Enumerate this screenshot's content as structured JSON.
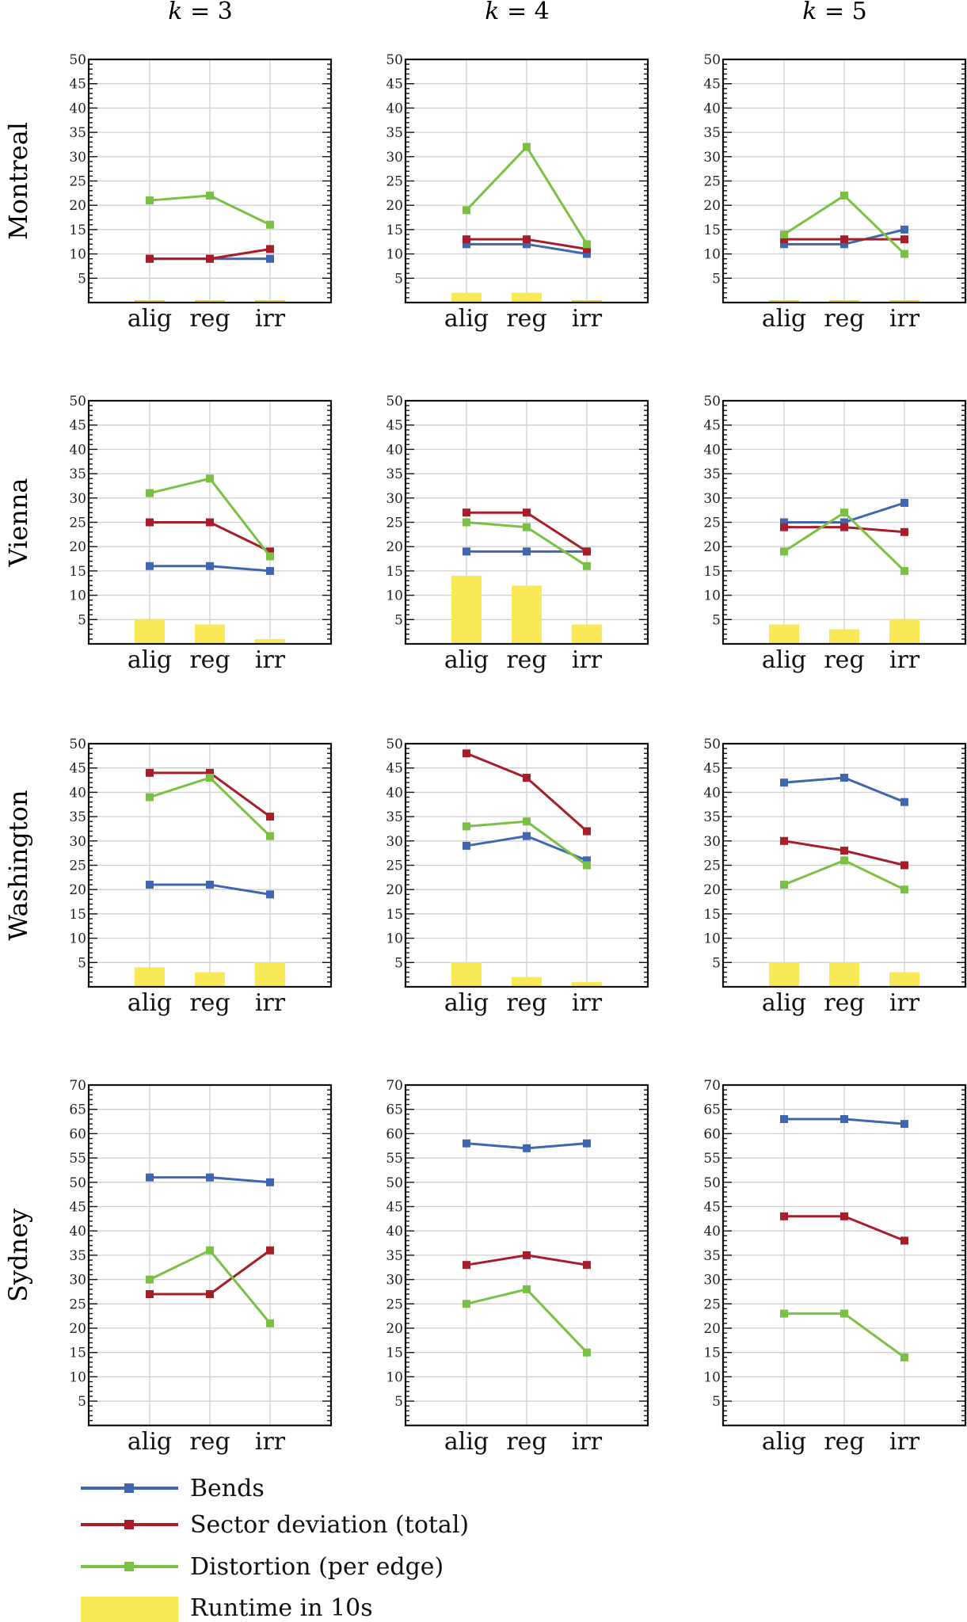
{
  "chart_data": {
    "type": "line",
    "grid": true,
    "column_titles": [
      {
        "var": "k",
        "op": "=",
        "val": "3"
      },
      {
        "var": "k",
        "op": "=",
        "val": "4"
      },
      {
        "var": "k",
        "op": "=",
        "val": "5"
      }
    ],
    "row_labels": [
      "Montreal",
      "Vienna",
      "Washington",
      "Sydney"
    ],
    "categories": [
      "alig",
      "reg",
      "irr"
    ],
    "series_defs": [
      {
        "key": "bends",
        "name": "Bends",
        "color": "#4066b0",
        "kind": "line"
      },
      {
        "key": "sector",
        "name": "Sector deviation (total)",
        "color": "#a81d2a",
        "kind": "line"
      },
      {
        "key": "distortion",
        "name": "Distortion (per edge)",
        "color": "#7ac143",
        "kind": "line"
      },
      {
        "key": "runtime",
        "name": "Runtime in 10s",
        "color": "#f9e858",
        "kind": "bar"
      }
    ],
    "legend_position": "bottom-left",
    "rows": [
      {
        "name": "Montreal",
        "ylim": [
          0,
          50
        ],
        "yticks": [
          5,
          10,
          15,
          20,
          25,
          30,
          35,
          40,
          45,
          50
        ],
        "panels": [
          {
            "k": 3,
            "bends": [
              9,
              9,
              9
            ],
            "sector": [
              9,
              9,
              11
            ],
            "distortion": [
              21,
              22,
              16
            ],
            "runtime": [
              0,
              0,
              0
            ]
          },
          {
            "k": 4,
            "bends": [
              12,
              12,
              10
            ],
            "sector": [
              13,
              13,
              11
            ],
            "distortion": [
              19,
              32,
              12
            ],
            "runtime": [
              2,
              2,
              0
            ]
          },
          {
            "k": 5,
            "bends": [
              12,
              12,
              15
            ],
            "sector": [
              13,
              13,
              13
            ],
            "distortion": [
              14,
              22,
              10
            ],
            "runtime": [
              0,
              0,
              0
            ]
          }
        ]
      },
      {
        "name": "Vienna",
        "ylim": [
          0,
          50
        ],
        "yticks": [
          5,
          10,
          15,
          20,
          25,
          30,
          35,
          40,
          45,
          50
        ],
        "panels": [
          {
            "k": 3,
            "bends": [
              16,
              16,
              15
            ],
            "sector": [
              25,
              25,
              19
            ],
            "distortion": [
              31,
              34,
              18
            ],
            "runtime": [
              5,
              4,
              1
            ]
          },
          {
            "k": 4,
            "bends": [
              19,
              19,
              19
            ],
            "sector": [
              27,
              27,
              19
            ],
            "distortion": [
              25,
              24,
              16
            ],
            "runtime": [
              14,
              12,
              4
            ]
          },
          {
            "k": 5,
            "bends": [
              25,
              25,
              29
            ],
            "sector": [
              24,
              24,
              23
            ],
            "distortion": [
              19,
              27,
              15
            ],
            "runtime": [
              4,
              3,
              5
            ]
          }
        ]
      },
      {
        "name": "Washington",
        "ylim": [
          0,
          50
        ],
        "yticks": [
          5,
          10,
          15,
          20,
          25,
          30,
          35,
          40,
          45,
          50
        ],
        "panels": [
          {
            "k": 3,
            "bends": [
              21,
              21,
              19
            ],
            "sector": [
              44,
              44,
              35
            ],
            "distortion": [
              39,
              43,
              31
            ],
            "runtime": [
              4,
              3,
              5
            ]
          },
          {
            "k": 4,
            "bends": [
              29,
              31,
              26
            ],
            "sector": [
              48,
              43,
              32
            ],
            "distortion": [
              33,
              34,
              25
            ],
            "runtime": [
              5,
              2,
              1
            ]
          },
          {
            "k": 5,
            "bends": [
              42,
              43,
              38
            ],
            "sector": [
              30,
              28,
              25
            ],
            "distortion": [
              21,
              26,
              20
            ],
            "runtime": [
              5,
              5,
              3
            ]
          }
        ]
      },
      {
        "name": "Sydney",
        "ylim": [
          0,
          70
        ],
        "yticks": [
          5,
          10,
          15,
          20,
          25,
          30,
          35,
          40,
          45,
          50,
          55,
          60,
          65,
          70
        ],
        "panels": [
          {
            "k": 3,
            "bends": [
              51,
              51,
              50
            ],
            "sector": [
              27,
              27,
              36
            ],
            "distortion": [
              30,
              36,
              21
            ],
            "runtime": null
          },
          {
            "k": 4,
            "bends": [
              58,
              57,
              58
            ],
            "sector": [
              33,
              35,
              33
            ],
            "distortion": [
              25,
              28,
              15
            ],
            "runtime": null
          },
          {
            "k": 5,
            "bends": [
              63,
              63,
              62
            ],
            "sector": [
              43,
              43,
              38
            ],
            "distortion": [
              23,
              23,
              14
            ],
            "runtime": null
          }
        ]
      }
    ]
  }
}
